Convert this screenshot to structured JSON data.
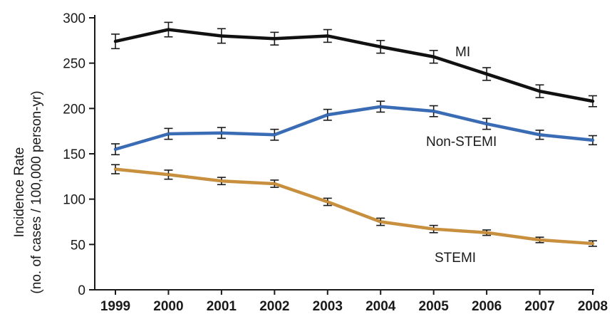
{
  "chart_data": {
    "type": "line",
    "title": "",
    "xlabel": "",
    "ylabel_lines": [
      "Incidence Rate",
      "(no. of cases / 100,000 person-yr)"
    ],
    "x": [
      1999,
      2000,
      2001,
      2002,
      2003,
      2004,
      2005,
      2006,
      2007,
      2008
    ],
    "xlim": [
      1999,
      2008
    ],
    "ylim": [
      0,
      300
    ],
    "yticks": [
      0,
      50,
      100,
      150,
      200,
      250,
      300
    ],
    "grid": false,
    "error_bars": true,
    "series": [
      {
        "name": "MI",
        "color": "#111111",
        "values": [
          274,
          287,
          280,
          277,
          280,
          268,
          257,
          238,
          219,
          208
        ],
        "error": [
          8,
          8,
          8,
          7,
          7,
          7,
          7,
          7,
          7,
          6
        ]
      },
      {
        "name": "Non-STEMI",
        "color": "#3a6bb5",
        "values": [
          155,
          172,
          173,
          171,
          193,
          202,
          197,
          183,
          171,
          165
        ],
        "error": [
          6,
          6,
          6,
          6,
          6,
          6,
          6,
          6,
          5,
          5
        ]
      },
      {
        "name": "STEMI",
        "color": "#c8903e",
        "values": [
          133,
          127,
          120,
          117,
          97,
          75,
          67,
          63,
          55,
          51
        ],
        "error": [
          5,
          5,
          4,
          4,
          4,
          4,
          4,
          3,
          3,
          3
        ]
      }
    ]
  }
}
